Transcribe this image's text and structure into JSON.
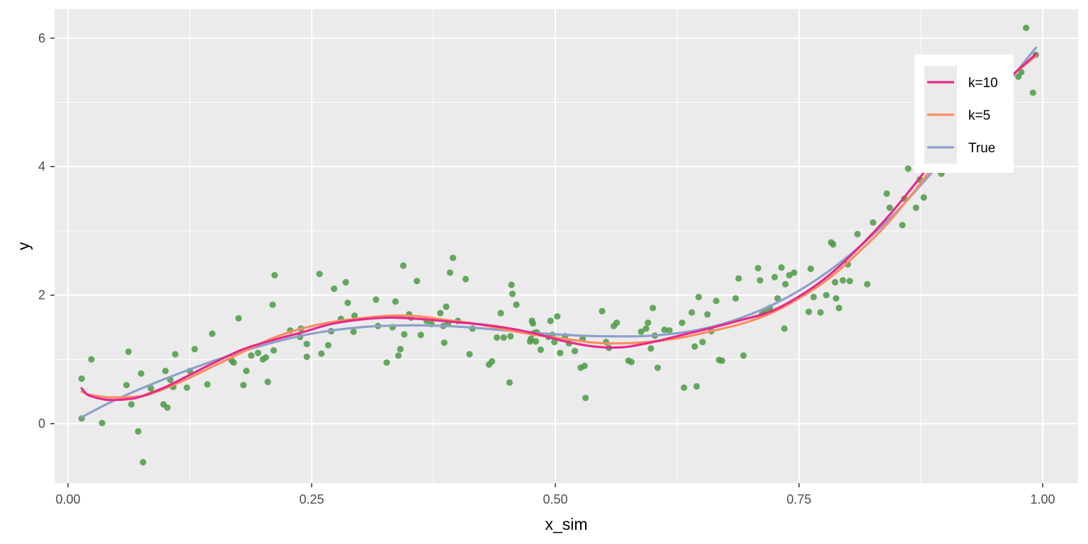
{
  "chart_data": {
    "type": "scatter",
    "title": "",
    "xlabel": "x_sim",
    "ylabel": "y",
    "xlim": [
      -0.0138,
      1.0363
    ],
    "ylim": [
      -0.925,
      6.45
    ],
    "x_ticks": [
      0.0,
      0.25,
      0.5,
      0.75,
      1.0
    ],
    "x_tick_labels": [
      "0.00",
      "0.25",
      "0.50",
      "0.75",
      "1.00"
    ],
    "y_ticks": [
      0,
      2,
      4,
      6
    ],
    "y_tick_labels": [
      "0",
      "2",
      "4",
      "6"
    ],
    "grid": true,
    "legend_position": "top-right",
    "colors": {
      "panel": "#EBEBEB",
      "grid": "#FFFFFF",
      "points": "#4E9A47",
      "k10": "#E7298A",
      "k5": "#FC8D62",
      "true": "#8DA0CB"
    },
    "points": [
      {
        "x": 0.014,
        "y": 0.7
      },
      {
        "x": 0.014,
        "y": 0.08
      },
      {
        "x": 0.024,
        "y": 1.0
      },
      {
        "x": 0.035,
        "y": 0.01
      },
      {
        "x": 0.06,
        "y": 0.6
      },
      {
        "x": 0.062,
        "y": 1.12
      },
      {
        "x": 0.065,
        "y": 0.3
      },
      {
        "x": 0.072,
        "y": -0.12
      },
      {
        "x": 0.075,
        "y": 0.78
      },
      {
        "x": 0.077,
        "y": -0.6
      },
      {
        "x": 0.085,
        "y": 0.55
      },
      {
        "x": 0.098,
        "y": 0.3
      },
      {
        "x": 0.1,
        "y": 0.82
      },
      {
        "x": 0.102,
        "y": 0.25
      },
      {
        "x": 0.105,
        "y": 0.68
      },
      {
        "x": 0.108,
        "y": 0.57
      },
      {
        "x": 0.11,
        "y": 1.08
      },
      {
        "x": 0.122,
        "y": 0.56
      },
      {
        "x": 0.125,
        "y": 0.82
      },
      {
        "x": 0.13,
        "y": 1.16
      },
      {
        "x": 0.143,
        "y": 0.61
      },
      {
        "x": 0.148,
        "y": 1.4
      },
      {
        "x": 0.168,
        "y": 0.98
      },
      {
        "x": 0.17,
        "y": 0.95
      },
      {
        "x": 0.175,
        "y": 1.64
      },
      {
        "x": 0.18,
        "y": 0.6
      },
      {
        "x": 0.183,
        "y": 0.82
      },
      {
        "x": 0.188,
        "y": 1.06
      },
      {
        "x": 0.195,
        "y": 1.1
      },
      {
        "x": 0.2,
        "y": 1.0
      },
      {
        "x": 0.203,
        "y": 1.03
      },
      {
        "x": 0.205,
        "y": 0.65
      },
      {
        "x": 0.21,
        "y": 1.85
      },
      {
        "x": 0.211,
        "y": 1.14
      },
      {
        "x": 0.212,
        "y": 2.31
      },
      {
        "x": 0.228,
        "y": 1.45
      },
      {
        "x": 0.238,
        "y": 1.35
      },
      {
        "x": 0.239,
        "y": 1.48
      },
      {
        "x": 0.245,
        "y": 1.24
      },
      {
        "x": 0.245,
        "y": 1.04
      },
      {
        "x": 0.258,
        "y": 2.33
      },
      {
        "x": 0.26,
        "y": 1.09
      },
      {
        "x": 0.267,
        "y": 1.22
      },
      {
        "x": 0.27,
        "y": 1.44
      },
      {
        "x": 0.273,
        "y": 2.1
      },
      {
        "x": 0.28,
        "y": 1.63
      },
      {
        "x": 0.285,
        "y": 2.2
      },
      {
        "x": 0.287,
        "y": 1.88
      },
      {
        "x": 0.293,
        "y": 1.43
      },
      {
        "x": 0.294,
        "y": 1.68
      },
      {
        "x": 0.316,
        "y": 1.93
      },
      {
        "x": 0.318,
        "y": 1.52
      },
      {
        "x": 0.327,
        "y": 0.95
      },
      {
        "x": 0.333,
        "y": 1.5
      },
      {
        "x": 0.336,
        "y": 1.9
      },
      {
        "x": 0.339,
        "y": 1.06
      },
      {
        "x": 0.341,
        "y": 1.16
      },
      {
        "x": 0.344,
        "y": 2.46
      },
      {
        "x": 0.345,
        "y": 1.39
      },
      {
        "x": 0.35,
        "y": 1.7
      },
      {
        "x": 0.352,
        "y": 1.65
      },
      {
        "x": 0.358,
        "y": 2.22
      },
      {
        "x": 0.362,
        "y": 1.38
      },
      {
        "x": 0.368,
        "y": 1.6
      },
      {
        "x": 0.373,
        "y": 1.55
      },
      {
        "x": 0.382,
        "y": 1.72
      },
      {
        "x": 0.385,
        "y": 1.52
      },
      {
        "x": 0.386,
        "y": 1.26
      },
      {
        "x": 0.388,
        "y": 1.82
      },
      {
        "x": 0.39,
        "y": 1.56
      },
      {
        "x": 0.392,
        "y": 2.35
      },
      {
        "x": 0.395,
        "y": 2.58
      },
      {
        "x": 0.4,
        "y": 1.6
      },
      {
        "x": 0.408,
        "y": 2.25
      },
      {
        "x": 0.412,
        "y": 1.08
      },
      {
        "x": 0.415,
        "y": 1.48
      },
      {
        "x": 0.432,
        "y": 0.92
      },
      {
        "x": 0.435,
        "y": 0.97
      },
      {
        "x": 0.44,
        "y": 1.34
      },
      {
        "x": 0.444,
        "y": 1.72
      },
      {
        "x": 0.447,
        "y": 1.34
      },
      {
        "x": 0.453,
        "y": 0.64
      },
      {
        "x": 0.454,
        "y": 1.36
      },
      {
        "x": 0.455,
        "y": 2.16
      },
      {
        "x": 0.456,
        "y": 2.02
      },
      {
        "x": 0.46,
        "y": 1.85
      },
      {
        "x": 0.474,
        "y": 1.28
      },
      {
        "x": 0.475,
        "y": 1.32
      },
      {
        "x": 0.476,
        "y": 1.6
      },
      {
        "x": 0.477,
        "y": 1.56
      },
      {
        "x": 0.478,
        "y": 1.41
      },
      {
        "x": 0.48,
        "y": 1.28
      },
      {
        "x": 0.481,
        "y": 1.42
      },
      {
        "x": 0.485,
        "y": 1.15
      },
      {
        "x": 0.493,
        "y": 1.35
      },
      {
        "x": 0.495,
        "y": 1.6
      },
      {
        "x": 0.497,
        "y": 1.38
      },
      {
        "x": 0.499,
        "y": 1.27
      },
      {
        "x": 0.502,
        "y": 1.67
      },
      {
        "x": 0.505,
        "y": 1.1
      },
      {
        "x": 0.51,
        "y": 1.36
      },
      {
        "x": 0.514,
        "y": 1.25
      },
      {
        "x": 0.52,
        "y": 1.13
      },
      {
        "x": 0.526,
        "y": 0.87
      },
      {
        "x": 0.528,
        "y": 1.32
      },
      {
        "x": 0.53,
        "y": 0.9
      },
      {
        "x": 0.531,
        "y": 0.4
      },
      {
        "x": 0.548,
        "y": 1.75
      },
      {
        "x": 0.552,
        "y": 1.27
      },
      {
        "x": 0.555,
        "y": 1.18
      },
      {
        "x": 0.56,
        "y": 1.52
      },
      {
        "x": 0.563,
        "y": 1.57
      },
      {
        "x": 0.575,
        "y": 0.98
      },
      {
        "x": 0.578,
        "y": 0.96
      },
      {
        "x": 0.588,
        "y": 1.43
      },
      {
        "x": 0.593,
        "y": 1.48
      },
      {
        "x": 0.595,
        "y": 1.57
      },
      {
        "x": 0.598,
        "y": 1.17
      },
      {
        "x": 0.6,
        "y": 1.8
      },
      {
        "x": 0.602,
        "y": 1.37
      },
      {
        "x": 0.605,
        "y": 0.87
      },
      {
        "x": 0.612,
        "y": 1.46
      },
      {
        "x": 0.617,
        "y": 1.45
      },
      {
        "x": 0.63,
        "y": 1.57
      },
      {
        "x": 0.632,
        "y": 0.56
      },
      {
        "x": 0.64,
        "y": 1.73
      },
      {
        "x": 0.643,
        "y": 1.2
      },
      {
        "x": 0.645,
        "y": 0.58
      },
      {
        "x": 0.647,
        "y": 1.97
      },
      {
        "x": 0.651,
        "y": 1.27
      },
      {
        "x": 0.656,
        "y": 1.7
      },
      {
        "x": 0.66,
        "y": 1.44
      },
      {
        "x": 0.665,
        "y": 1.91
      },
      {
        "x": 0.668,
        "y": 0.99
      },
      {
        "x": 0.671,
        "y": 0.98
      },
      {
        "x": 0.685,
        "y": 1.95
      },
      {
        "x": 0.688,
        "y": 2.26
      },
      {
        "x": 0.693,
        "y": 1.06
      },
      {
        "x": 0.708,
        "y": 2.42
      },
      {
        "x": 0.71,
        "y": 2.23
      },
      {
        "x": 0.712,
        "y": 1.7
      },
      {
        "x": 0.715,
        "y": 1.74
      },
      {
        "x": 0.72,
        "y": 1.8
      },
      {
        "x": 0.725,
        "y": 2.28
      },
      {
        "x": 0.728,
        "y": 1.95
      },
      {
        "x": 0.732,
        "y": 2.43
      },
      {
        "x": 0.735,
        "y": 1.48
      },
      {
        "x": 0.736,
        "y": 2.17
      },
      {
        "x": 0.74,
        "y": 2.31
      },
      {
        "x": 0.745,
        "y": 2.35
      },
      {
        "x": 0.76,
        "y": 1.74
      },
      {
        "x": 0.762,
        "y": 2.41
      },
      {
        "x": 0.765,
        "y": 1.97
      },
      {
        "x": 0.772,
        "y": 1.73
      },
      {
        "x": 0.778,
        "y": 2.0
      },
      {
        "x": 0.783,
        "y": 2.82
      },
      {
        "x": 0.785,
        "y": 2.79
      },
      {
        "x": 0.787,
        "y": 2.2
      },
      {
        "x": 0.788,
        "y": 1.95
      },
      {
        "x": 0.791,
        "y": 1.8
      },
      {
        "x": 0.795,
        "y": 2.23
      },
      {
        "x": 0.8,
        "y": 2.48
      },
      {
        "x": 0.802,
        "y": 2.22
      },
      {
        "x": 0.81,
        "y": 2.95
      },
      {
        "x": 0.82,
        "y": 2.17
      },
      {
        "x": 0.826,
        "y": 3.13
      },
      {
        "x": 0.84,
        "y": 3.58
      },
      {
        "x": 0.843,
        "y": 3.36
      },
      {
        "x": 0.856,
        "y": 3.09
      },
      {
        "x": 0.858,
        "y": 3.5
      },
      {
        "x": 0.862,
        "y": 3.97
      },
      {
        "x": 0.87,
        "y": 3.36
      },
      {
        "x": 0.874,
        "y": 3.8
      },
      {
        "x": 0.878,
        "y": 3.52
      },
      {
        "x": 0.896,
        "y": 3.89
      },
      {
        "x": 0.905,
        "y": 4.12
      },
      {
        "x": 0.912,
        "y": 4.7
      },
      {
        "x": 0.925,
        "y": 5.0
      },
      {
        "x": 0.93,
        "y": 4.8
      },
      {
        "x": 0.975,
        "y": 5.4
      },
      {
        "x": 0.978,
        "y": 5.47
      },
      {
        "x": 0.983,
        "y": 6.16
      },
      {
        "x": 0.99,
        "y": 5.15
      },
      {
        "x": 0.993,
        "y": 5.74
      }
    ],
    "series": [
      {
        "name": "k=10",
        "x": [
          0.014,
          0.02,
          0.03,
          0.04,
          0.05,
          0.06,
          0.07,
          0.08,
          0.1,
          0.12,
          0.15,
          0.18,
          0.21,
          0.24,
          0.27,
          0.3,
          0.33,
          0.36,
          0.39,
          0.42,
          0.45,
          0.48,
          0.51,
          0.54,
          0.57,
          0.6,
          0.63,
          0.66,
          0.69,
          0.72,
          0.75,
          0.78,
          0.81,
          0.84,
          0.87,
          0.9,
          0.93,
          0.96,
          0.993
        ],
        "values": [
          0.55,
          0.45,
          0.4,
          0.37,
          0.37,
          0.38,
          0.4,
          0.45,
          0.57,
          0.72,
          0.95,
          1.16,
          1.3,
          1.42,
          1.55,
          1.62,
          1.65,
          1.63,
          1.59,
          1.55,
          1.49,
          1.4,
          1.28,
          1.2,
          1.19,
          1.27,
          1.38,
          1.49,
          1.61,
          1.74,
          1.98,
          2.3,
          2.72,
          3.2,
          3.75,
          4.35,
          4.85,
          5.3,
          5.75
        ]
      },
      {
        "name": "k=5",
        "x": [
          0.014,
          0.02,
          0.03,
          0.04,
          0.05,
          0.06,
          0.07,
          0.08,
          0.1,
          0.12,
          0.15,
          0.18,
          0.21,
          0.24,
          0.27,
          0.3,
          0.33,
          0.36,
          0.39,
          0.42,
          0.45,
          0.48,
          0.51,
          0.54,
          0.57,
          0.6,
          0.63,
          0.66,
          0.69,
          0.72,
          0.75,
          0.78,
          0.81,
          0.84,
          0.87,
          0.9,
          0.93,
          0.96,
          0.993
        ],
        "values": [
          0.5,
          0.46,
          0.43,
          0.41,
          0.41,
          0.41,
          0.42,
          0.44,
          0.55,
          0.68,
          0.9,
          1.12,
          1.33,
          1.48,
          1.58,
          1.64,
          1.68,
          1.67,
          1.61,
          1.55,
          1.46,
          1.38,
          1.32,
          1.26,
          1.25,
          1.28,
          1.34,
          1.44,
          1.55,
          1.71,
          1.95,
          2.25,
          2.65,
          3.1,
          3.65,
          4.25,
          4.8,
          5.3,
          5.72
        ]
      },
      {
        "name": "True",
        "x": [
          0.014,
          0.05,
          0.1,
          0.15,
          0.2,
          0.25,
          0.3,
          0.35,
          0.4,
          0.45,
          0.5,
          0.55,
          0.6,
          0.65,
          0.7,
          0.75,
          0.8,
          0.85,
          0.9,
          0.95,
          0.993
        ],
        "values": [
          0.1,
          0.38,
          0.7,
          0.98,
          1.22,
          1.4,
          1.5,
          1.53,
          1.51,
          1.45,
          1.39,
          1.36,
          1.37,
          1.47,
          1.7,
          2.07,
          2.6,
          3.3,
          4.15,
          5.05,
          5.85
        ]
      }
    ],
    "legend": {
      "items": [
        "k=10",
        "k=5",
        "True"
      ]
    }
  }
}
